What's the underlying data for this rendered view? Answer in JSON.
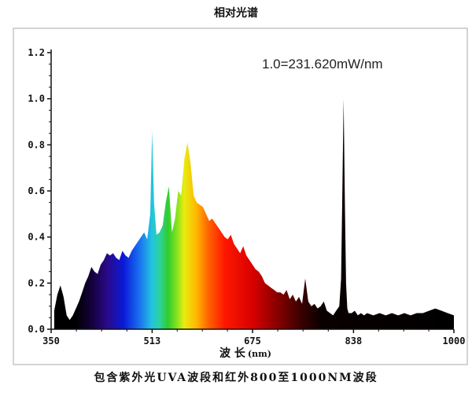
{
  "chart_data": {
    "type": "area",
    "title": "相对光谱",
    "xlabel": "波 长",
    "xunit": "(nm)",
    "ylabel": "",
    "xlim": [
      350,
      1000
    ],
    "ylim": [
      0,
      1.2
    ],
    "x_ticks": [
      "350",
      "513",
      "675",
      "838",
      "1000"
    ],
    "y_ticks": [
      "0.0",
      "0.2",
      "0.4",
      "0.6",
      "0.8",
      "1.0",
      "1.2"
    ],
    "annotation": "1.0=231.620mW/nm",
    "grid": false,
    "legend": "none",
    "fill": "visible-spectrum gradient (violet to red), black in UV and IR",
    "series": [
      {
        "x": [
          355,
          360,
          365,
          370,
          375,
          380,
          385,
          390,
          395,
          400,
          405,
          410,
          415,
          420,
          425,
          430,
          435,
          440,
          445,
          450,
          455,
          460,
          465,
          470,
          475,
          480,
          485,
          490,
          495,
          500,
          505,
          510,
          513,
          516,
          520,
          525,
          530,
          535,
          540,
          545,
          550,
          555,
          560,
          565,
          570,
          575,
          580,
          585,
          590,
          595,
          600,
          605,
          610,
          615,
          620,
          625,
          630,
          635,
          640,
          645,
          650,
          655,
          660,
          665,
          670,
          675,
          680,
          685,
          690,
          695,
          700,
          705,
          710,
          715,
          720,
          725,
          730,
          735,
          740,
          745,
          750,
          755,
          760,
          765,
          770,
          775,
          780,
          785,
          790,
          795,
          800,
          805,
          810,
          815,
          818,
          820,
          822,
          824,
          826,
          828,
          830,
          835,
          840,
          845,
          850,
          855,
          860,
          870,
          880,
          890,
          900,
          910,
          920,
          930,
          940,
          950,
          960,
          970,
          980,
          990,
          1000
        ],
        "y": [
          0.08,
          0.15,
          0.19,
          0.14,
          0.06,
          0.04,
          0.06,
          0.09,
          0.12,
          0.16,
          0.2,
          0.23,
          0.27,
          0.25,
          0.24,
          0.28,
          0.3,
          0.33,
          0.32,
          0.33,
          0.31,
          0.3,
          0.34,
          0.32,
          0.31,
          0.34,
          0.36,
          0.38,
          0.4,
          0.42,
          0.39,
          0.5,
          0.86,
          0.55,
          0.41,
          0.42,
          0.45,
          0.55,
          0.62,
          0.42,
          0.48,
          0.6,
          0.58,
          0.74,
          0.81,
          0.72,
          0.58,
          0.55,
          0.54,
          0.53,
          0.5,
          0.47,
          0.48,
          0.46,
          0.44,
          0.42,
          0.4,
          0.39,
          0.41,
          0.37,
          0.35,
          0.33,
          0.36,
          0.32,
          0.3,
          0.28,
          0.26,
          0.25,
          0.23,
          0.2,
          0.19,
          0.18,
          0.17,
          0.16,
          0.16,
          0.15,
          0.17,
          0.13,
          0.15,
          0.12,
          0.14,
          0.11,
          0.22,
          0.12,
          0.1,
          0.11,
          0.09,
          0.1,
          0.12,
          0.08,
          0.07,
          0.06,
          0.08,
          0.1,
          0.22,
          0.6,
          1.0,
          0.55,
          0.2,
          0.09,
          0.07,
          0.07,
          0.08,
          0.06,
          0.07,
          0.06,
          0.07,
          0.06,
          0.07,
          0.06,
          0.07,
          0.06,
          0.07,
          0.06,
          0.07,
          0.07,
          0.08,
          0.09,
          0.08,
          0.07,
          0.06
        ]
      }
    ]
  },
  "caption": "包含紫外光UVA波段和红外800至1000NM波段"
}
